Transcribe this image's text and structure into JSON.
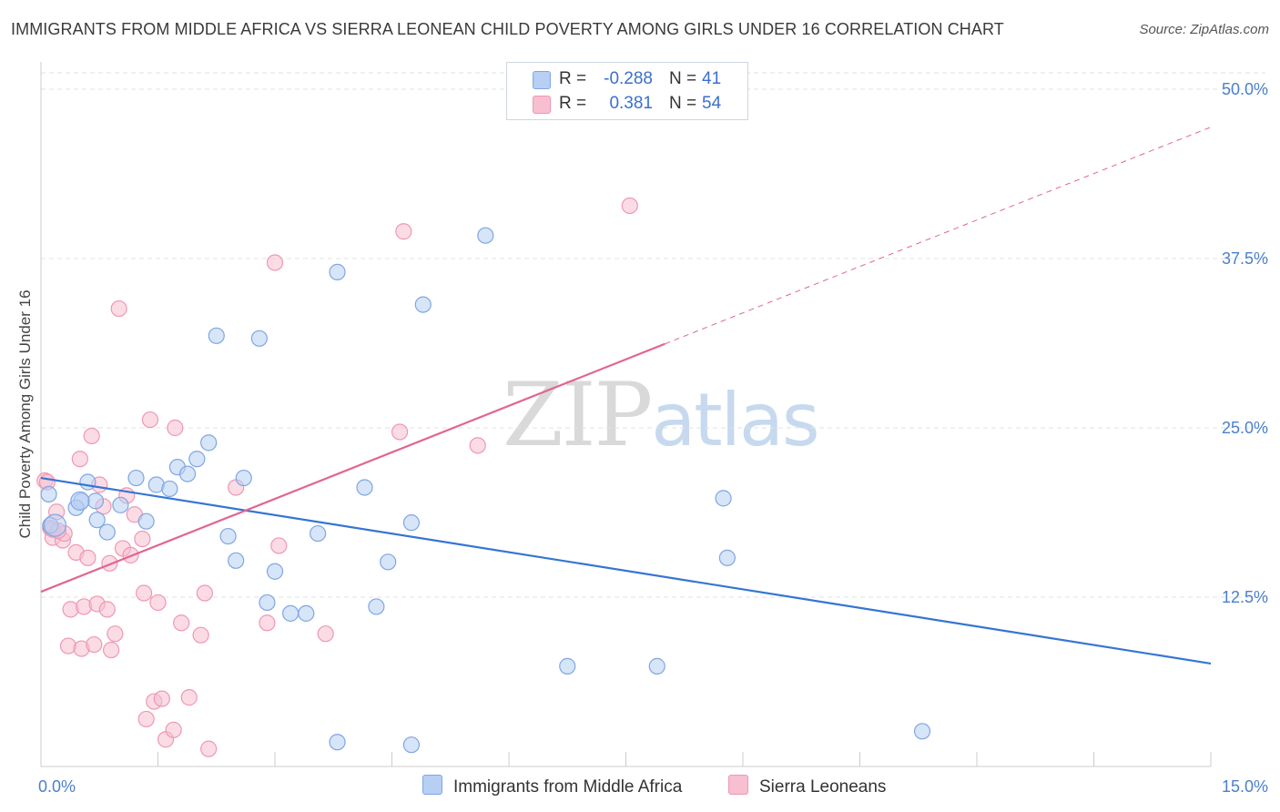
{
  "title": "IMMIGRANTS FROM MIDDLE AFRICA VS SIERRA LEONEAN CHILD POVERTY AMONG GIRLS UNDER 16 CORRELATION CHART",
  "source": "Source: ZipAtlas.com",
  "watermark": {
    "zip": "ZIP",
    "atlas": "atlas"
  },
  "legend_top": {
    "rows": [
      {
        "r_label": "R =",
        "r_value": "-0.288",
        "n_label": "N =",
        "n_value": "41"
      },
      {
        "r_label": "R =",
        "r_value": "0.381",
        "n_label": "N =",
        "n_value": "54"
      }
    ]
  },
  "legend_bottom": {
    "items": [
      {
        "label": "Immigrants from Middle Africa"
      },
      {
        "label": "Sierra Leoneans"
      }
    ]
  },
  "colors": {
    "blue_fill": "#b7cff3",
    "blue_stroke": "#7fa6e3",
    "blue_line": "#3575d3",
    "pink_fill": "#f7bfd0",
    "pink_stroke": "#ef97b4",
    "pink_line": "#e2658f",
    "grid": "#e2e2e2",
    "tick_label": "#4a7fcf"
  },
  "chart_data": {
    "type": "scatter",
    "xlabel": "",
    "ylabel": "Child Poverty Among Girls Under 16",
    "xlim": [
      0,
      15
    ],
    "ylim": [
      0,
      50
    ],
    "x_tick_labels": [
      {
        "value": 0,
        "label": "0.0%"
      },
      {
        "value": 15,
        "label": "15.0%"
      }
    ],
    "y_tick_labels": [
      {
        "value": 12.5,
        "label": "12.5%"
      },
      {
        "value": 25,
        "label": "25.0%"
      },
      {
        "value": 37.5,
        "label": "37.5%"
      },
      {
        "value": 50,
        "label": "50.0%"
      }
    ],
    "grid": true,
    "legend_position": "top-center",
    "series": [
      {
        "name": "Immigrants from Middle Africa",
        "color": "#7fa6e3",
        "points": [
          [
            0.12,
            17.8
          ],
          [
            0.52,
            19.6
          ],
          [
            0.6,
            21.0
          ],
          [
            0.7,
            19.6
          ],
          [
            0.45,
            19.1
          ],
          [
            0.72,
            18.2
          ],
          [
            0.85,
            17.3
          ],
          [
            1.02,
            19.3
          ],
          [
            1.22,
            21.3
          ],
          [
            1.35,
            18.1
          ],
          [
            1.48,
            20.8
          ],
          [
            1.65,
            20.5
          ],
          [
            1.75,
            22.1
          ],
          [
            1.88,
            21.6
          ],
          [
            2.0,
            22.7
          ],
          [
            2.15,
            23.9
          ],
          [
            2.25,
            31.8
          ],
          [
            2.4,
            17.0
          ],
          [
            2.5,
            15.2
          ],
          [
            2.6,
            21.3
          ],
          [
            2.8,
            31.6
          ],
          [
            2.9,
            12.1
          ],
          [
            3.0,
            14.4
          ],
          [
            3.2,
            11.3
          ],
          [
            3.4,
            11.3
          ],
          [
            3.55,
            17.2
          ],
          [
            3.8,
            1.8
          ],
          [
            3.8,
            36.5
          ],
          [
            4.15,
            20.6
          ],
          [
            4.3,
            11.8
          ],
          [
            4.45,
            15.1
          ],
          [
            4.75,
            1.6
          ],
          [
            4.75,
            18.0
          ],
          [
            4.9,
            34.1
          ],
          [
            5.7,
            39.2
          ],
          [
            6.75,
            7.4
          ],
          [
            7.9,
            7.4
          ],
          [
            8.75,
            19.8
          ],
          [
            8.8,
            15.4
          ],
          [
            11.3,
            2.6
          ],
          [
            0.1,
            20.1
          ]
        ]
      },
      {
        "name": "Sierra Leoneans",
        "color": "#ef97b4",
        "points": [
          [
            0.05,
            21.1
          ],
          [
            0.12,
            17.6
          ],
          [
            0.15,
            16.9
          ],
          [
            0.2,
            18.8
          ],
          [
            0.28,
            16.7
          ],
          [
            0.3,
            17.2
          ],
          [
            0.35,
            8.9
          ],
          [
            0.38,
            11.6
          ],
          [
            0.45,
            15.8
          ],
          [
            0.5,
            22.7
          ],
          [
            0.52,
            8.7
          ],
          [
            0.55,
            11.8
          ],
          [
            0.6,
            15.4
          ],
          [
            0.65,
            24.4
          ],
          [
            0.68,
            9.0
          ],
          [
            0.72,
            12.0
          ],
          [
            0.75,
            20.8
          ],
          [
            0.8,
            19.2
          ],
          [
            0.85,
            11.6
          ],
          [
            0.88,
            15.0
          ],
          [
            0.9,
            8.6
          ],
          [
            0.95,
            9.8
          ],
          [
            1.0,
            33.8
          ],
          [
            1.05,
            16.1
          ],
          [
            1.1,
            20.0
          ],
          [
            1.15,
            15.6
          ],
          [
            1.2,
            18.6
          ],
          [
            1.3,
            16.8
          ],
          [
            1.32,
            12.8
          ],
          [
            1.35,
            3.5
          ],
          [
            1.4,
            25.6
          ],
          [
            1.45,
            4.8
          ],
          [
            1.5,
            12.1
          ],
          [
            1.55,
            5.0
          ],
          [
            1.6,
            2.0
          ],
          [
            1.7,
            2.7
          ],
          [
            1.72,
            25.0
          ],
          [
            1.8,
            10.6
          ],
          [
            1.9,
            5.1
          ],
          [
            2.05,
            9.7
          ],
          [
            2.1,
            12.8
          ],
          [
            2.15,
            1.3
          ],
          [
            2.5,
            20.6
          ],
          [
            2.9,
            10.6
          ],
          [
            3.0,
            37.2
          ],
          [
            3.05,
            16.3
          ],
          [
            3.65,
            9.8
          ],
          [
            4.6,
            24.7
          ],
          [
            4.65,
            39.5
          ],
          [
            5.6,
            23.7
          ],
          [
            7.55,
            41.4
          ],
          [
            0.08,
            21.0
          ],
          [
            0.15,
            17.5
          ],
          [
            0.22,
            17.4
          ]
        ]
      }
    ],
    "trendlines": [
      {
        "series": "Immigrants from Middle Africa",
        "x": [
          0,
          15
        ],
        "y": [
          21.3,
          7.6
        ],
        "style": "solid"
      },
      {
        "series": "Sierra Leoneans",
        "x": [
          0,
          8.0
        ],
        "y": [
          12.9,
          31.2
        ],
        "style": "solid"
      },
      {
        "series": "Sierra Leoneans",
        "x": [
          8.0,
          15
        ],
        "y": [
          31.2,
          47.2
        ],
        "style": "dashed"
      }
    ]
  }
}
